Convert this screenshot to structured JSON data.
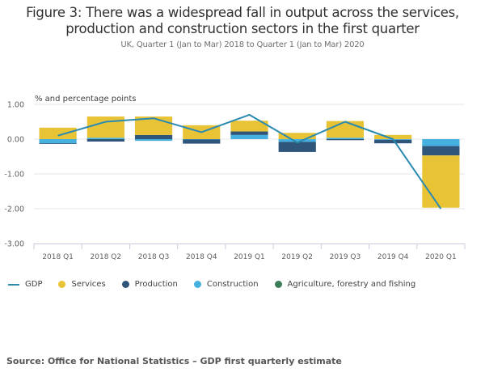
{
  "title": "Figure 3: There was a widespread fall in output across the services, production and construction sectors in the first quarter",
  "title_line1": "Figure 3: There was a widespread fall in output across the services,",
  "title_line2": "production and construction sectors in the first quarter",
  "subtitle": "UK, Quarter 1 (Jan to Mar) 2018 to Quarter 1 (Jan to Mar) 2020",
  "source": "Source: Office for National Statistics – GDP first quarterly estimate",
  "colors": {
    "gdp": "#2a8ab0",
    "services": "#e9c336",
    "production": "#2f557a",
    "construction": "#46b1df",
    "agriculture": "#3b7d57",
    "grid": "#e6e6e6",
    "axis": "#c8cbdf"
  },
  "chart_data": {
    "type": "bar",
    "stacked": true,
    "title": "Figure 3: There was a widespread fall in output across the services, production and construction sectors in the first quarter",
    "subtitle": "UK, Quarter 1 (Jan to Mar) 2018 to Quarter 1 (Jan to Mar) 2020",
    "xlabel": "",
    "ylabel": "% and percentage points",
    "ylim": [
      -3,
      1
    ],
    "yticks": [
      1,
      0,
      -1,
      -2,
      -3
    ],
    "ytick_labels": [
      "1.00",
      "0.00",
      "-1.00",
      "-2.00",
      "-3.00"
    ],
    "grid": true,
    "legend_position": "bottom",
    "categories": [
      "2018 Q1",
      "2018 Q2",
      "2018 Q3",
      "2018 Q4",
      "2019 Q1",
      "2019 Q2",
      "2019 Q3",
      "2019 Q4",
      "2020 Q1"
    ],
    "series": [
      {
        "name": "Services",
        "type": "bar",
        "key": "services",
        "values": [
          0.33,
          0.61,
          0.53,
          0.4,
          0.31,
          0.18,
          0.48,
          0.12,
          -1.5
        ]
      },
      {
        "name": "Production",
        "type": "bar",
        "key": "production",
        "values": [
          -0.02,
          -0.07,
          0.12,
          -0.12,
          0.1,
          -0.29,
          -0.03,
          -0.1,
          -0.27
        ]
      },
      {
        "name": "Construction",
        "type": "bar",
        "key": "construction",
        "values": [
          -0.12,
          0.04,
          -0.05,
          -0.01,
          0.12,
          -0.08,
          0.04,
          -0.02,
          -0.2
        ]
      },
      {
        "name": "Agriculture, forestry and fishing",
        "type": "bar",
        "key": "agriculture",
        "values": [
          0.0,
          0.0,
          0.0,
          0.0,
          0.0,
          0.0,
          0.0,
          0.0,
          0.0
        ]
      },
      {
        "name": "GDP",
        "type": "line",
        "key": "gdp",
        "values": [
          0.1,
          0.5,
          0.6,
          0.2,
          0.7,
          -0.1,
          0.5,
          0.0,
          -2.0
        ]
      }
    ],
    "legend": [
      "GDP",
      "Services",
      "Production",
      "Construction",
      "Agriculture, forestry and fishing"
    ]
  }
}
